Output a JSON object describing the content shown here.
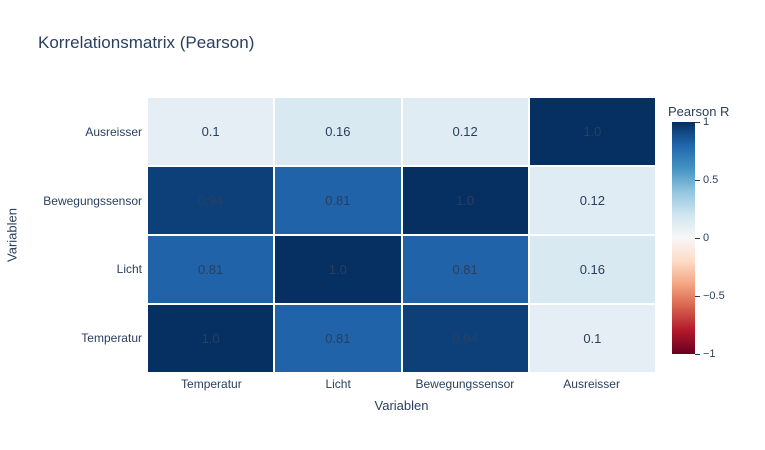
{
  "page": {
    "background": "#ffffff",
    "font_color": "#2a3f5f"
  },
  "title": "Korrelationsmatrix (Pearson)",
  "chart_data": {
    "type": "heatmap",
    "title": "Korrelationsmatrix (Pearson)",
    "xlabel": "Variablen",
    "ylabel": "Variablen",
    "x_categories": [
      "Temperatur",
      "Licht",
      "Bewegungssensor",
      "Ausreisser"
    ],
    "y_categories_top_to_bottom": [
      "Ausreisser",
      "Bewegungssensor",
      "Licht",
      "Temperatur"
    ],
    "values_rows_top_to_bottom": [
      [
        0.1,
        0.16,
        0.12,
        1.0
      ],
      [
        0.94,
        0.81,
        1.0,
        0.12
      ],
      [
        0.81,
        1.0,
        0.81,
        0.16
      ],
      [
        1.0,
        0.81,
        0.94,
        0.1
      ]
    ],
    "labels_rows_top_to_bottom": [
      [
        "0.1",
        "0.16",
        "0.12",
        "1.0"
      ],
      [
        "0.94",
        "0.81",
        "1.0",
        "0.12"
      ],
      [
        "0.81",
        "1.0",
        "0.81",
        "0.16"
      ],
      [
        "1.0",
        "0.81",
        "0.94",
        "0.1"
      ]
    ],
    "zmin": -1,
    "zmax": 1,
    "grid": false,
    "legend_position": "right-colorbar",
    "colorscale_name": "RdBu",
    "colorscale": [
      [
        0.0,
        "#67001f"
      ],
      [
        0.1,
        "#b2182b"
      ],
      [
        0.2,
        "#d6604d"
      ],
      [
        0.3,
        "#f4a582"
      ],
      [
        0.4,
        "#fddbc7"
      ],
      [
        0.5,
        "#f7f7f7"
      ],
      [
        0.6,
        "#d1e5f0"
      ],
      [
        0.7,
        "#92c5de"
      ],
      [
        0.8,
        "#4393c3"
      ],
      [
        0.9,
        "#2166ac"
      ],
      [
        1.0,
        "#053061"
      ]
    ],
    "colorbar": {
      "title": "Pearson R",
      "tick_values": [
        1,
        0.5,
        0,
        -0.5,
        -1
      ],
      "tick_labels": [
        "1",
        "0.5",
        "0",
        "−0.5",
        "−1"
      ]
    }
  }
}
